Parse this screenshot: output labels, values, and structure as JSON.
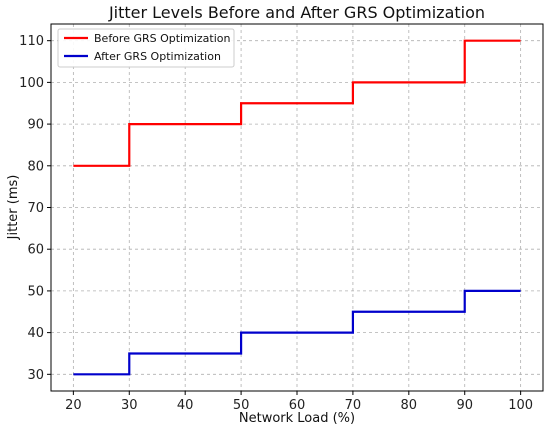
{
  "chart_data": {
    "type": "line",
    "step": "post",
    "title": "Jitter Levels Before and After GRS Optimization",
    "xlabel": "Network Load (%)",
    "ylabel": "Jitter (ms)",
    "x": [
      20,
      30,
      50,
      70,
      90,
      100
    ],
    "xlim": [
      16,
      104
    ],
    "ylim": [
      26,
      114
    ],
    "xticks": [
      "20",
      "30",
      "40",
      "50",
      "60",
      "70",
      "80",
      "90",
      "100"
    ],
    "yticks": [
      "30",
      "40",
      "50",
      "60",
      "70",
      "80",
      "90",
      "100",
      "110"
    ],
    "grid": true,
    "legend_position": "top-left",
    "series": [
      {
        "name": "Before GRS Optimization",
        "color": "#ff0000",
        "values": [
          80,
          90,
          95,
          100,
          110,
          110
        ]
      },
      {
        "name": "After GRS Optimization",
        "color": "#0000cc",
        "values": [
          30,
          35,
          40,
          45,
          50,
          50
        ]
      }
    ]
  }
}
